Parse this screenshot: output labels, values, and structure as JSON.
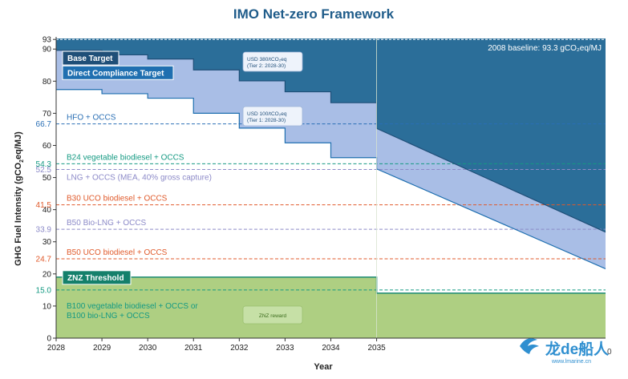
{
  "title": "IMO Net-zero Framework",
  "colors": {
    "dark_teal": "#2b6e99",
    "light_blue": "#a9bee6",
    "green": "#aecf82",
    "znz_line": "#1a8a73",
    "title": "#1f5c8a",
    "red": "#e05a2b",
    "purple": "#8c8ac8",
    "teal_label": "#159a83",
    "blue_label": "#2a6fb5"
  },
  "chart_data": {
    "type": "area",
    "title": "IMO Net-zero Framework",
    "xlabel": "Year",
    "ylabel": "GHG Fuel Intensity (gCO2eq/MJ)",
    "xlim": [
      2028,
      2040
    ],
    "ylim": [
      0,
      93.3
    ],
    "x_ticks": [
      "2028",
      "2029",
      "2030",
      "2031",
      "2032",
      "2033",
      "2034",
      "2035"
    ],
    "y_ticks": [
      "0",
      "10",
      "20",
      "30",
      "40",
      "50",
      "60",
      "70",
      "80",
      "90"
    ],
    "y_special_ticks": [
      {
        "value": 93,
        "label": "93",
        "color": "#222222"
      },
      {
        "value": 66.7,
        "label": "66.7",
        "color": "#2a6fb5"
      },
      {
        "value": 54.3,
        "label": "54.3",
        "color": "#159a83"
      },
      {
        "value": 52.5,
        "label": "52.5",
        "color": "#8c8ac8"
      },
      {
        "value": 41.5,
        "label": "41.5",
        "color": "#e05a2b"
      },
      {
        "value": 33.9,
        "label": "33.9",
        "color": "#8c8ac8"
      },
      {
        "value": 24.7,
        "label": "24.7",
        "color": "#e05a2b"
      },
      {
        "value": 15.0,
        "label": "15.0",
        "color": "#159a83"
      }
    ],
    "baseline": {
      "value": 93.3,
      "label": "2008 baseline: 93.3 gCO₂eq/MJ"
    },
    "series": [
      {
        "name": "Base Target",
        "x": [
          2028,
          2029,
          2030,
          2031,
          2032,
          2033,
          2034,
          2035,
          2040
        ],
        "y": [
          89.6,
          88.2,
          86.9,
          83.5,
          80.1,
          76.7,
          73.3,
          65.3,
          33.0
        ]
      },
      {
        "name": "Direct Compliance Target",
        "x": [
          2028,
          2029,
          2030,
          2031,
          2032,
          2033,
          2034,
          2035,
          2040
        ],
        "y": [
          77.4,
          76.1,
          74.7,
          70.0,
          65.4,
          60.8,
          56.2,
          52.7,
          21.6
        ]
      },
      {
        "name": "ZNZ Threshold",
        "x": [
          2028,
          2035,
          2035,
          2040
        ],
        "y": [
          19.0,
          19.0,
          14.0,
          14.0
        ]
      }
    ],
    "reference_lines": [
      {
        "name": "HFO + OCCS",
        "value": 66.7,
        "color": "#2a6fb5"
      },
      {
        "name": "B24 vegetable biodiesel + OCCS",
        "value": 54.3,
        "color": "#159a83"
      },
      {
        "name": "LNG + OCCS (MEA, 40% gross capture)",
        "value": 52.5,
        "color": "#8c8ac8"
      },
      {
        "name": "B30 UCO biodiesel + OCCS",
        "value": 41.5,
        "color": "#e05a2b"
      },
      {
        "name": "B50 Bio-LNG + OCCS",
        "value": 33.9,
        "color": "#8c8ac8"
      },
      {
        "name": "B50 UCO biodiesel + OCCS",
        "value": 24.7,
        "color": "#e05a2b"
      },
      {
        "name": "B100 vegetable biodiesel + OCCS or B100 bio-LNG + OCCS",
        "value": 15.0,
        "color": "#159a83"
      }
    ],
    "annotations": [
      {
        "text_line1": "USD 380/tCO₂eq",
        "text_line2": "(Tier 2: 2028-30)"
      },
      {
        "text_line1": "USD 100/tCO₂eq",
        "text_line2": "(Tier 1: 2028-30)"
      },
      {
        "text_line1": "ZNZ reward",
        "text_line2": ""
      }
    ],
    "labels": {
      "base_target": "Base Target",
      "direct_compliance": "Direct Compliance Target",
      "znz_threshold": "ZNZ Threshold",
      "hfo": "HFO + OCCS",
      "b24": "B24 vegetable biodiesel + OCCS",
      "lng": "LNG + OCCS (MEA, 40% gross capture)",
      "b30": "B30 UCO biodiesel + OCCS",
      "b50lng": "B50 Bio-LNG + OCCS",
      "b50uco": "B50 UCO biodiesel + OCCS",
      "b100_line1": "B100 vegetable biodiesel + OCCS or",
      "b100_line2": "B100 bio-LNG + OCCS"
    }
  },
  "watermark": {
    "brand": "龙de船人",
    "url": "www.lmarine.cn",
    "cut_text": "0"
  }
}
